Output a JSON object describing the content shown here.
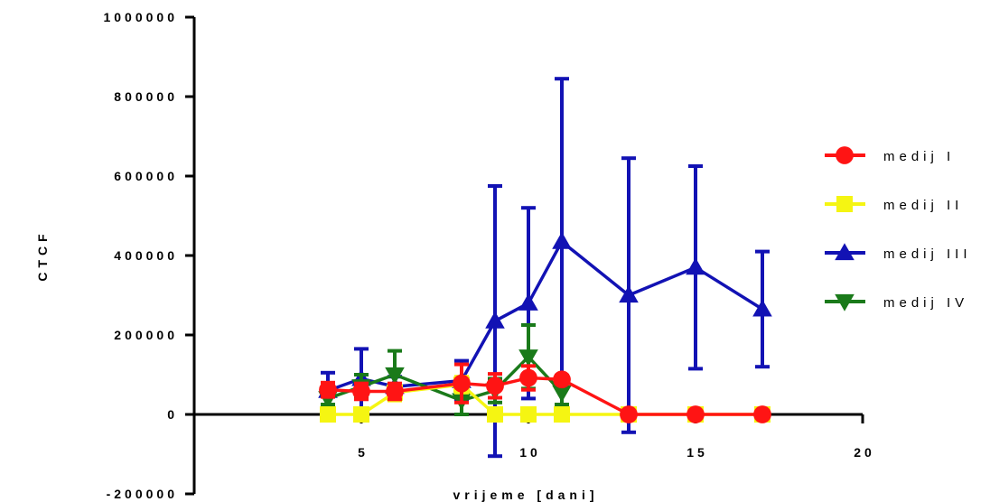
{
  "chart_data": {
    "type": "line",
    "xlabel": "vrijeme [dani]",
    "ylabel": "CTCF",
    "xlim": [
      0,
      20
    ],
    "ylim": [
      -200000,
      1000000
    ],
    "x_ticks": [
      "5",
      "10",
      "15",
      "20"
    ],
    "y_ticks": [
      "-200000",
      "0",
      "200000",
      "400000",
      "600000",
      "800000",
      "1000000"
    ],
    "x_tick_values": [
      5,
      10,
      15,
      20
    ],
    "y_tick_values": [
      -200000,
      0,
      200000,
      400000,
      600000,
      800000,
      1000000
    ],
    "grid": false,
    "legend_position": "right",
    "series": [
      {
        "name": "medij III",
        "color": "#1212b4",
        "marker": "triangle-up",
        "x": [
          4,
          5,
          6,
          8,
          9,
          10,
          11,
          13,
          15,
          17
        ],
        "y": [
          60000,
          90000,
          70000,
          85000,
          235000,
          280000,
          435000,
          300000,
          370000,
          265000
        ],
        "error": [
          45000,
          75000,
          25000,
          50000,
          340000,
          240000,
          410000,
          345000,
          255000,
          145000
        ]
      },
      {
        "name": "medij IV",
        "color": "#1a7a1a",
        "marker": "triangle-down",
        "x": [
          4,
          5,
          6,
          8,
          9,
          10,
          11
        ],
        "y": [
          40000,
          70000,
          100000,
          35000,
          60000,
          145000,
          55000
        ],
        "error": [
          15000,
          30000,
          60000,
          35000,
          30000,
          80000,
          30000
        ]
      },
      {
        "name": "medij II",
        "color": "#f5f512",
        "marker": "square",
        "x": [
          4,
          5,
          6,
          8,
          9,
          10,
          11,
          13,
          15,
          17
        ],
        "y": [
          0,
          0,
          55000,
          75000,
          0,
          0,
          0,
          0,
          0,
          0
        ],
        "error": [
          0,
          0,
          20000,
          20000,
          0,
          0,
          0,
          0,
          0,
          0
        ]
      },
      {
        "name": "medij I",
        "color": "#ff1414",
        "marker": "circle",
        "x": [
          4,
          5,
          6,
          8,
          9,
          10,
          11,
          13,
          15,
          17
        ],
        "y": [
          62000,
          58000,
          58000,
          78000,
          72000,
          92000,
          88000,
          0,
          0,
          0
        ],
        "error": [
          18000,
          20000,
          20000,
          48000,
          30000,
          30000,
          10000,
          0,
          0,
          0
        ]
      }
    ],
    "legend_order": [
      "medij I",
      "medij II",
      "medij III",
      "medij IV"
    ]
  }
}
